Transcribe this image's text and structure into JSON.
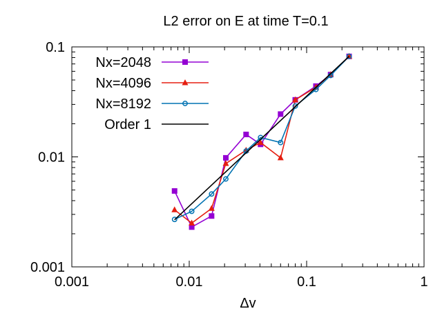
{
  "chart_data": {
    "type": "line",
    "title": "L2 error on E at time T=0.1",
    "xlabel": "Δv",
    "ylabel": "",
    "x_scale": "log",
    "y_scale": "log",
    "xlim": [
      0.001,
      1
    ],
    "ylim": [
      0.001,
      0.1
    ],
    "x_ticks": [
      {
        "value": 0.001,
        "label": "0.001"
      },
      {
        "value": 0.01,
        "label": "0.01"
      },
      {
        "value": 0.1,
        "label": "0.1"
      },
      {
        "value": 1,
        "label": "1"
      }
    ],
    "y_ticks": [
      {
        "value": 0.001,
        "label": "0.001"
      },
      {
        "value": 0.01,
        "label": "0.01"
      },
      {
        "value": 0.1,
        "label": "0.1"
      }
    ],
    "grid": false,
    "legend_position": "top-left",
    "series": [
      {
        "name": "Nx=2048",
        "color": "#9400d3",
        "marker": "square",
        "x": [
          0.0075,
          0.0105,
          0.0155,
          0.0205,
          0.0305,
          0.0405,
          0.06,
          0.08,
          0.12,
          0.16,
          0.23
        ],
        "y": [
          0.0049,
          0.0023,
          0.0029,
          0.0098,
          0.016,
          0.013,
          0.0245,
          0.033,
          0.044,
          0.056,
          0.082
        ]
      },
      {
        "name": "Nx=4096",
        "color": "#e51e10",
        "marker": "triangle",
        "x": [
          0.0075,
          0.0105,
          0.0155,
          0.0205,
          0.0305,
          0.0405,
          0.06,
          0.08,
          0.12,
          0.16,
          0.23
        ],
        "y": [
          0.0033,
          0.0025,
          0.0034,
          0.0087,
          0.0115,
          0.0135,
          0.0098,
          0.033,
          0.043,
          0.056,
          0.082
        ]
      },
      {
        "name": "Nx=8192",
        "color": "#0072b2",
        "marker": "circle",
        "x": [
          0.0075,
          0.0105,
          0.0155,
          0.0205,
          0.0305,
          0.0405,
          0.06,
          0.08,
          0.12,
          0.16,
          0.23
        ],
        "y": [
          0.0027,
          0.0032,
          0.0046,
          0.0063,
          0.0113,
          0.015,
          0.0135,
          0.029,
          0.041,
          0.055,
          0.082
        ]
      },
      {
        "name": "Order 1",
        "color": "#000000",
        "marker": "none",
        "x": [
          0.0075,
          0.23
        ],
        "y": [
          0.00268,
          0.082
        ]
      }
    ]
  }
}
